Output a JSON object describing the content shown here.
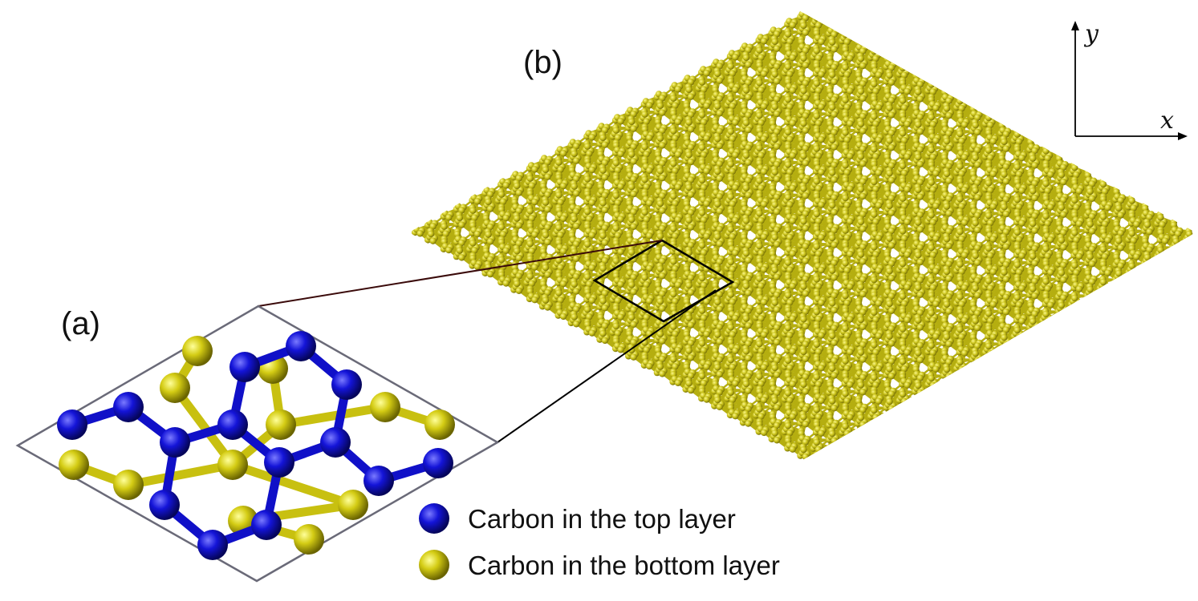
{
  "panels": {
    "a": {
      "label": "(a)"
    },
    "b": {
      "label": "(b)"
    }
  },
  "axes": {
    "x_label": "x",
    "y_label": "y"
  },
  "legend": {
    "items": [
      {
        "label": "Carbon in the top layer",
        "color": "#1010c8"
      },
      {
        "label": "Carbon in the bottom layer",
        "color": "#c8c010"
      }
    ]
  },
  "colors": {
    "top_atom": "#1010c8",
    "bottom_atom": "#c8c010",
    "lattice_atom": "#c9c21a",
    "cell_outline": "#6a6a78",
    "zoom_box": "#000000"
  }
}
